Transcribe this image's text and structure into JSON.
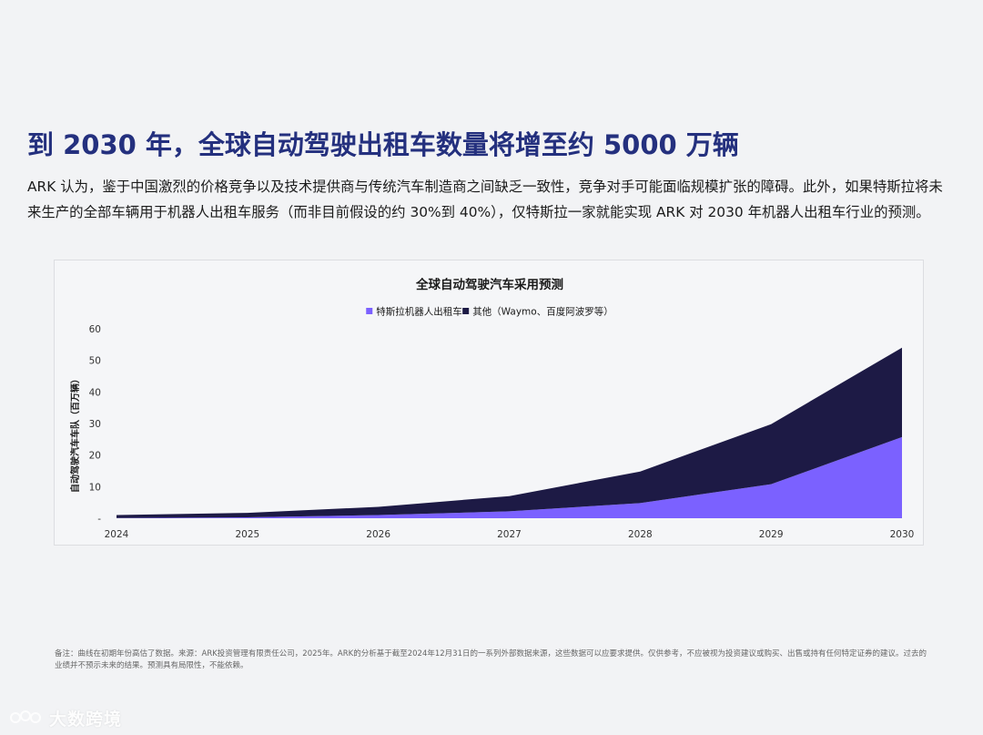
{
  "title": "到 2030 年，全球自动驾驶出租车数量将增至约 5000 万辆",
  "intro": "ARK 认为，鉴于中国激烈的价格竞争以及技术提供商与传统汽车制造商之间缺乏一致性，竞争对手可能面临规模扩张的障碍。此外，如果特斯拉将未来生产的全部车辆用于机器人出租车服务（而非目前假设的约 30%到 40%），仅特斯拉一家就能实现 ARK 对 2030 年机器人出租车行业的预测。",
  "footnote": "备注：曲线在初期年份高估了数据。来源：ARK投资管理有限责任公司，2025年。ARK的分析基于截至2024年12月31日的一系列外部数据来源，这些数据可以应要求提供。仅供参考，不应被视为投资建议或购买、出售或持有任何特定证券的建议。过去的业绩并不预示未来的结果。预测具有局限性，不能依赖。",
  "watermark": "大数跨境",
  "chart_data": {
    "type": "area",
    "stacked": true,
    "title": "全球自动驾驶汽车采用预测",
    "ylabel": "自动驾驶汽车车队（百万辆）",
    "xlabel": "",
    "x": [
      2024,
      2025,
      2026,
      2027,
      2028,
      2029,
      2030
    ],
    "x_tick_labels": [
      "2024",
      "2025",
      "2026",
      "2027",
      "2028",
      "2029",
      "2030"
    ],
    "y_tick_labels": [
      "-",
      "10",
      "20",
      "30",
      "40",
      "50",
      "60"
    ],
    "ylim": [
      0,
      60
    ],
    "legend_position": "top-center",
    "grid": false,
    "series": [
      {
        "name": "特斯拉机器人出租车",
        "color": "#7b61ff",
        "values": [
          0.1,
          0.3,
          1.0,
          2.2,
          4.8,
          10.8,
          25.7
        ]
      },
      {
        "name": "其他（Waymo、百度阿波罗等）",
        "color": "#1d1a45",
        "values": [
          0.9,
          1.4,
          2.6,
          4.8,
          10.0,
          19.0,
          28.3
        ]
      }
    ]
  }
}
